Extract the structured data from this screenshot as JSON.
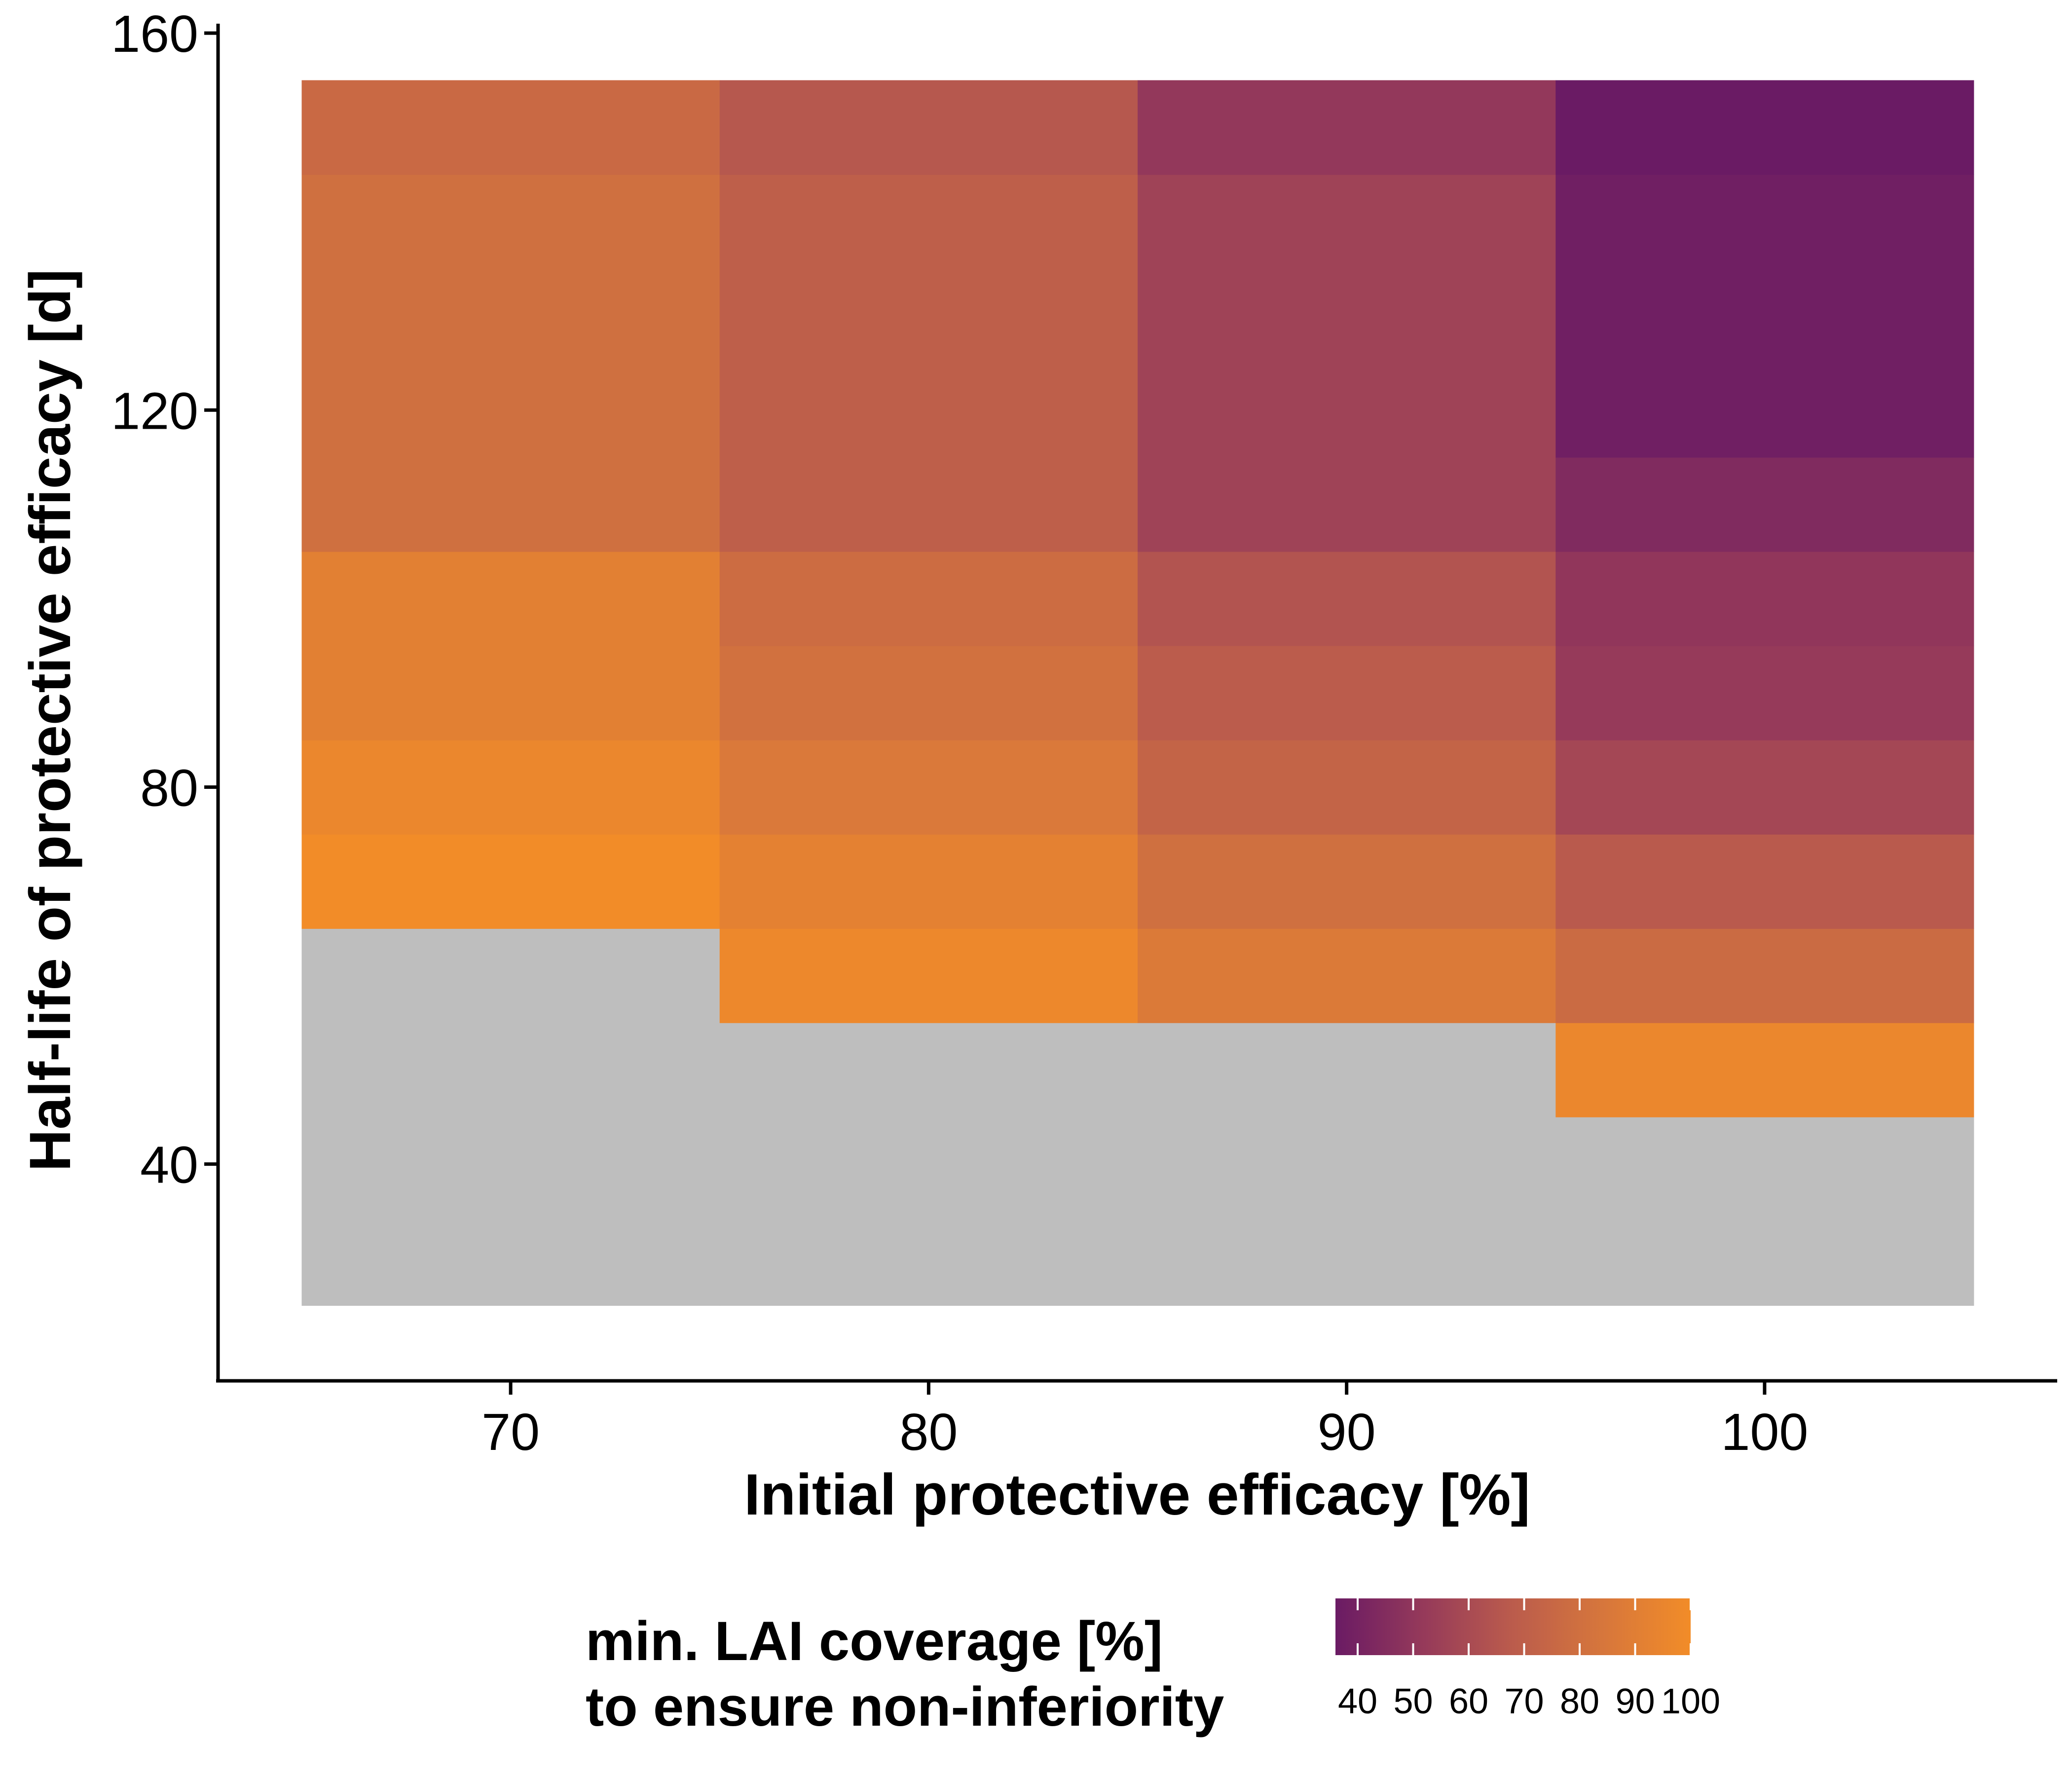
{
  "chart_data": {
    "type": "heatmap",
    "xlabel": "Initial protective efficacy [%]",
    "ylabel": "Half-life of protective efficacy [d]",
    "x": [
      70,
      80,
      90,
      100
    ],
    "y": [
      30,
      40,
      50,
      60,
      70,
      80,
      90,
      100,
      110,
      120,
      130,
      140,
      150
    ],
    "x_ticks": [
      "70",
      "80",
      "90",
      "100"
    ],
    "y_ticks": [
      "40",
      "80",
      "120",
      "160"
    ],
    "xlim": [
      63,
      107
    ],
    "ylim": [
      17,
      161
    ],
    "grid": false,
    "missing_color": "#bebebe",
    "values": [
      [
        null,
        null,
        null,
        null
      ],
      [
        null,
        null,
        null,
        null
      ],
      [
        null,
        null,
        null,
        96
      ],
      [
        null,
        97,
        87,
        77
      ],
      [
        100,
        92,
        80,
        67
      ],
      [
        96,
        86,
        73,
        58
      ],
      [
        91,
        81,
        68,
        52
      ],
      [
        91,
        78,
        64,
        50
      ],
      [
        80,
        70,
        56,
        44
      ],
      [
        80,
        70,
        56,
        38
      ],
      [
        80,
        70,
        56,
        38
      ],
      [
        80,
        70,
        56,
        38
      ],
      [
        76,
        66,
        51,
        36
      ]
    ],
    "legend": {
      "title_line1": "min. LAI coverage [%]",
      "title_line2": "to ensure non-inferiority",
      "ticks": [
        40,
        50,
        60,
        70,
        80,
        90,
        100
      ],
      "tick_labels": [
        "40",
        "50",
        "60",
        "70",
        "80",
        "90",
        "100"
      ],
      "range": [
        36,
        100
      ],
      "placement": "bottom",
      "color_low": "#6a1b64",
      "color_high": "#f28c28"
    }
  }
}
